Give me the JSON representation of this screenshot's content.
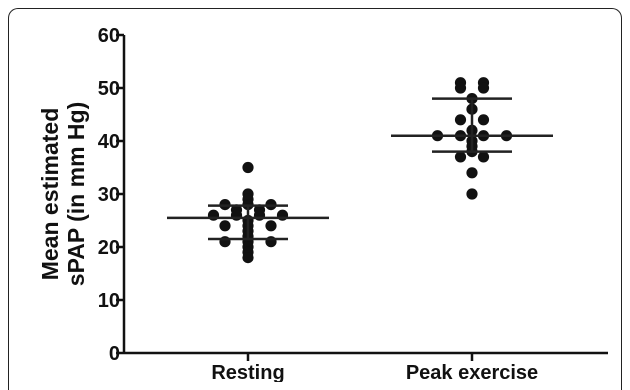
{
  "chart_data": {
    "type": "scatter",
    "title": "",
    "xlabel": "",
    "ylabel_lines": [
      "Mean estimated",
      "sPAP (in mm Hg)"
    ],
    "categories": [
      "Resting",
      "Peak exercise"
    ],
    "ylim": [
      0,
      60
    ],
    "yticks": [
      0,
      10,
      20,
      30,
      40,
      50,
      60
    ],
    "grid": false,
    "groups": [
      {
        "category": "Resting",
        "values": [
          35,
          30,
          29,
          28,
          28,
          28,
          27,
          27,
          26,
          26,
          26,
          26,
          25,
          24,
          24,
          24,
          23,
          22,
          21,
          21,
          21,
          20,
          19,
          18
        ],
        "mean": 25.5,
        "sd_upper": 27.8,
        "sd_lower": 21.5
      },
      {
        "category": "Peak exercise",
        "values": [
          51,
          51,
          50,
          50,
          48,
          46,
          44,
          44,
          42,
          41,
          41,
          41,
          41,
          40,
          39,
          38,
          37,
          37,
          34,
          30
        ],
        "mean": 41,
        "sd_upper": 48,
        "sd_lower": 38
      }
    ],
    "colors": {
      "points": "#111111",
      "axes": "#111111",
      "lines": "#222222"
    }
  }
}
